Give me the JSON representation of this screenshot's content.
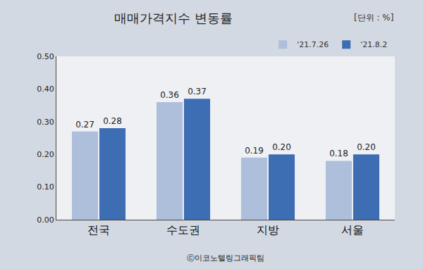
{
  "chart_data": {
    "type": "bar",
    "title": "매매가격지수 변동률",
    "subtitle": "[단위 : %]",
    "annotations": [
      "ⓒ이코노텔링그래픽팀"
    ],
    "categories": [
      "전국",
      "수도권",
      "지방",
      "서울"
    ],
    "series": [
      {
        "name": "'21.7.26",
        "color": "#aebfdc",
        "values": [
          0.27,
          0.36,
          0.19,
          0.18
        ],
        "value_labels": [
          "0.27",
          "0.36",
          "0.19",
          "0.18"
        ]
      },
      {
        "name": "'21.8.2",
        "color": "#3d6db3",
        "values": [
          0.28,
          0.37,
          0.2,
          0.2
        ],
        "value_labels": [
          "0.28",
          "0.37",
          "0.20",
          "0.20"
        ]
      }
    ],
    "ylim": [
      0,
      0.5
    ],
    "yticks": [
      {
        "value": 0,
        "label": "0.00"
      },
      {
        "value": 0.1,
        "label": "0.10"
      },
      {
        "value": 0.2,
        "label": "0.20"
      },
      {
        "value": 0.3,
        "label": "0.30"
      },
      {
        "value": 0.4,
        "label": "0.40"
      },
      {
        "value": 0.5,
        "label": "0.50"
      }
    ],
    "grid": false,
    "legend": "top right",
    "data_labels": true
  }
}
